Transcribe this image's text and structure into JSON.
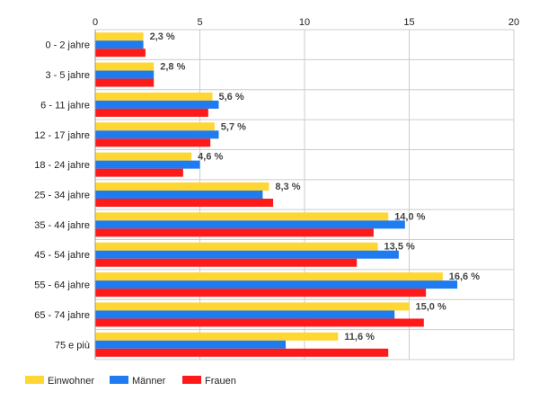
{
  "chart_data": {
    "type": "bar",
    "orientation": "horizontal",
    "categories": [
      "0 - 2 jahre",
      "3 - 5 jahre",
      "6 - 11 jahre",
      "12 - 17 jahre",
      "18 - 24 jahre",
      "25 - 34 jahre",
      "35 - 44 jahre",
      "45 - 54 jahre",
      "55 - 64 jahre",
      "65 - 74 jahre",
      "75 e più"
    ],
    "series": [
      {
        "name": "Einwohner",
        "color": "#ffd632",
        "values": [
          2.3,
          2.8,
          5.6,
          5.7,
          4.6,
          8.3,
          14.0,
          13.5,
          16.6,
          15.0,
          11.6
        ]
      },
      {
        "name": "Männer",
        "color": "#1e7bf0",
        "values": [
          2.3,
          2.8,
          5.9,
          5.9,
          5.0,
          8.0,
          14.8,
          14.5,
          17.3,
          14.3,
          9.1
        ]
      },
      {
        "name": "Frauen",
        "color": "#ff1a1a",
        "values": [
          2.4,
          2.8,
          5.4,
          5.5,
          4.2,
          8.5,
          13.3,
          12.5,
          15.8,
          15.7,
          14.0
        ]
      }
    ],
    "data_labels": [
      "2,3 %",
      "2,8 %",
      "5,6 %",
      "5,7 %",
      "4,6 %",
      "8,3 %",
      "14,0 %",
      "13,5 %",
      "16,6 %",
      "15,0 %",
      "11,6 %"
    ],
    "xlim": [
      0,
      20
    ],
    "x_ticks": [
      0,
      5,
      10,
      15,
      20
    ],
    "x_tick_labels": [
      "0",
      "5",
      "10",
      "15",
      "20"
    ],
    "grid": true,
    "legend_position": "bottom-left",
    "title": "",
    "xlabel": "",
    "ylabel": ""
  }
}
